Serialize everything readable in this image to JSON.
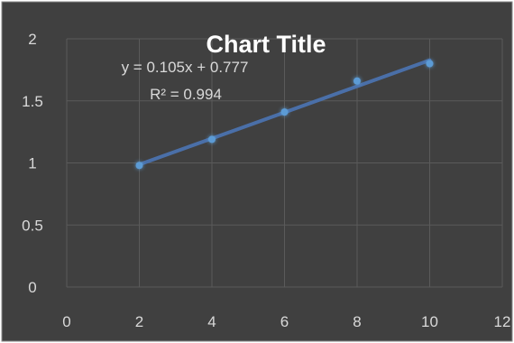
{
  "chart_data": {
    "type": "scatter",
    "title": "Chart Title",
    "xlabel": "",
    "ylabel": "",
    "xlim": [
      0,
      12
    ],
    "ylim": [
      0,
      2
    ],
    "x_ticks": [
      "0",
      "2",
      "4",
      "6",
      "8",
      "10",
      "12"
    ],
    "y_ticks": [
      "0",
      "0.5",
      "1",
      "1.5",
      "2"
    ],
    "grid": true,
    "legend": "none",
    "series": [
      {
        "x": [
          2,
          4,
          6,
          8,
          10
        ],
        "y": [
          0.98,
          1.19,
          1.41,
          1.66,
          1.8
        ]
      }
    ],
    "trendline": {
      "type": "linear",
      "slope": 0.105,
      "intercept": 0.777,
      "equation": "y = 0.105x + 0.777",
      "r_squared": "R² = 0.994"
    },
    "colors": {
      "background": "#404040",
      "grid": "#5a5a5a",
      "axis_text": "#d9d9d9",
      "title_text": "#ffffff",
      "marker": "#5b9bd5",
      "trendline": "#4a6fa8"
    }
  }
}
